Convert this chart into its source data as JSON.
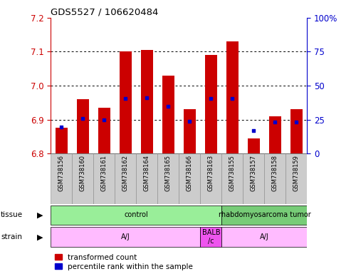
{
  "title": "GDS5527 / 106620484",
  "samples": [
    "GSM738156",
    "GSM738160",
    "GSM738161",
    "GSM738162",
    "GSM738164",
    "GSM738165",
    "GSM738166",
    "GSM738163",
    "GSM738155",
    "GSM738157",
    "GSM738158",
    "GSM738159"
  ],
  "red_values": [
    6.875,
    6.96,
    6.935,
    7.1,
    7.105,
    7.03,
    6.93,
    7.09,
    7.13,
    6.845,
    6.91,
    6.93
  ],
  "blue_values": [
    6.877,
    6.903,
    6.898,
    6.963,
    6.965,
    6.938,
    6.895,
    6.963,
    6.963,
    6.868,
    6.892,
    6.893
  ],
  "ymin": 6.8,
  "ymax": 7.2,
  "yticks_left": [
    6.8,
    6.9,
    7.0,
    7.1,
    7.2
  ],
  "yticks_right": [
    0,
    25,
    50,
    75,
    100
  ],
  "bar_color": "#cc0000",
  "dot_color": "#0000cc",
  "bar_bottom": 6.8,
  "ylabel_left_color": "#cc0000",
  "ylabel_right_color": "#0000cc",
  "tick_bg": "#cccccc",
  "tissue_data": [
    {
      "label": "control",
      "start": 0,
      "end": 8,
      "color": "#99ee99"
    },
    {
      "label": "rhabdomyosarcoma tumor",
      "start": 8,
      "end": 12,
      "color": "#77cc77"
    }
  ],
  "strain_data": [
    {
      "label": "A/J",
      "start": 0,
      "end": 7,
      "color": "#ffbbff"
    },
    {
      "label": "BALB\n/c",
      "start": 7,
      "end": 8,
      "color": "#ee55ee"
    },
    {
      "label": "A/J",
      "start": 8,
      "end": 12,
      "color": "#ffbbff"
    }
  ],
  "legend_red": "transformed count",
  "legend_blue": "percentile rank within the sample"
}
